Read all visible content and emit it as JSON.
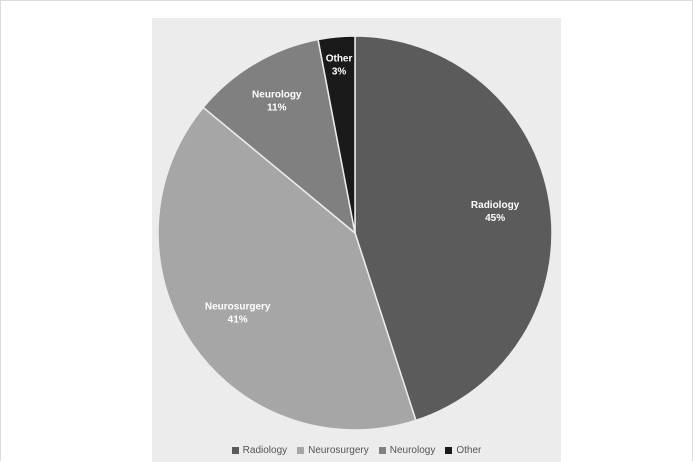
{
  "chart_data": {
    "type": "pie",
    "title": "",
    "slices": [
      {
        "label": "Radiology",
        "value": 45,
        "display": "45%",
        "color": "#5b5b5b"
      },
      {
        "label": "Neurosurgery",
        "value": 41,
        "display": "41%",
        "color": "#a6a6a6"
      },
      {
        "label": "Neurology",
        "value": 11,
        "display": "11%",
        "color": "#808080"
      },
      {
        "label": "Other",
        "value": 3,
        "display": "3%",
        "color": "#1a1a1a"
      }
    ],
    "legend_position": "bottom",
    "start_angle": "12 o'clock",
    "direction": "clockwise"
  }
}
